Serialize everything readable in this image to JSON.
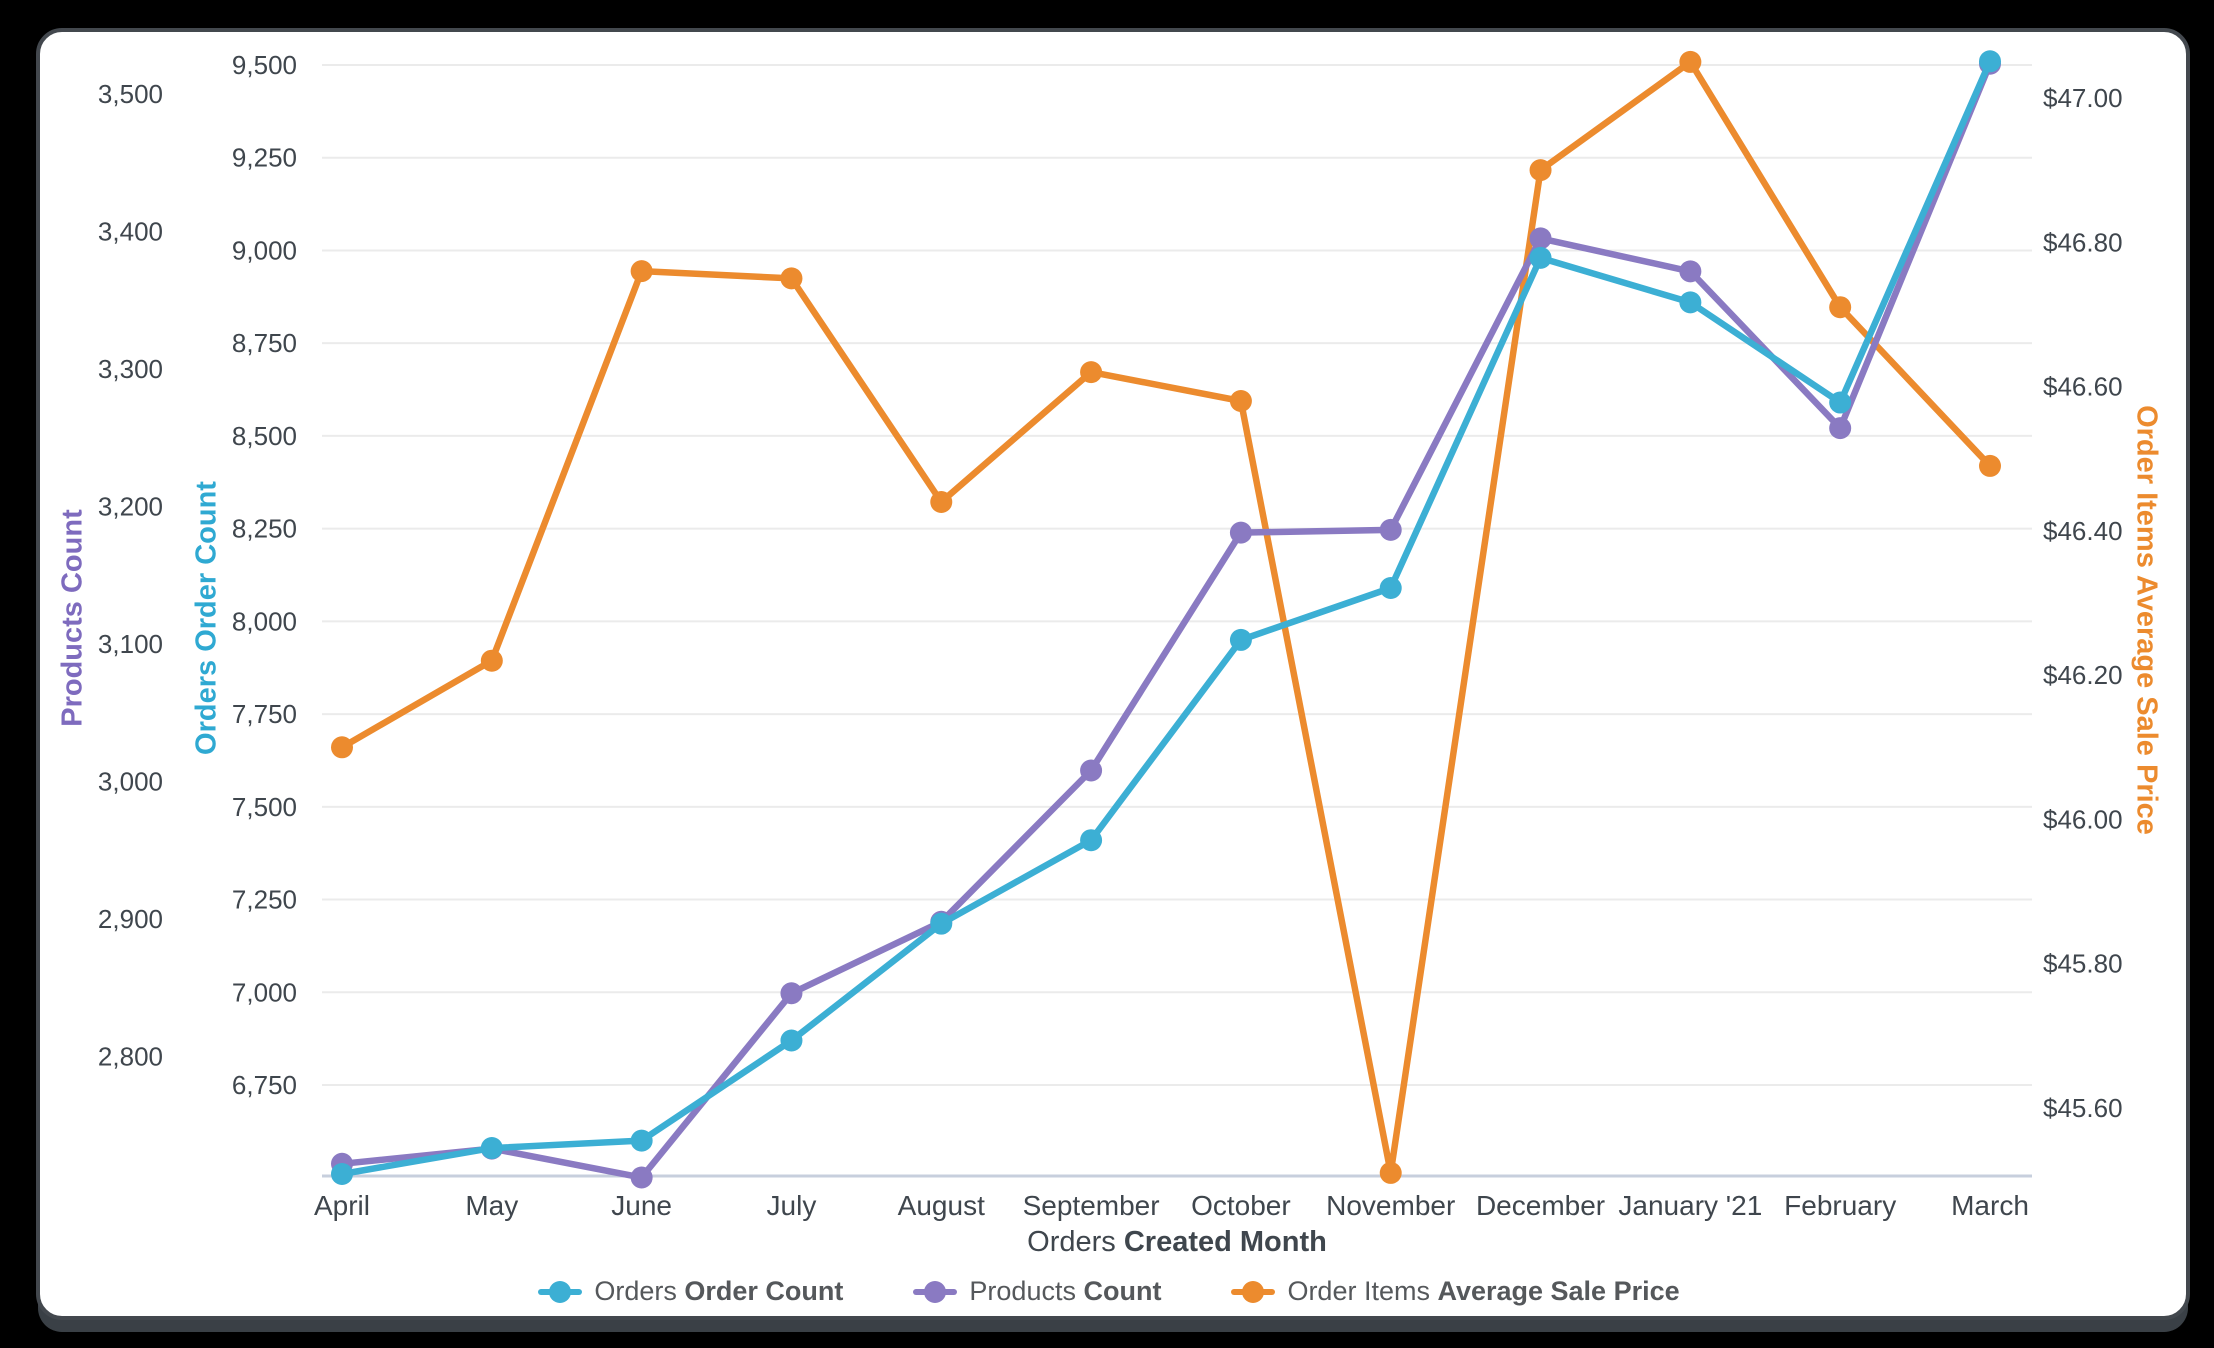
{
  "chart_data": {
    "type": "line",
    "categories": [
      "April",
      "May",
      "June",
      "July",
      "August",
      "September",
      "October",
      "November",
      "December",
      "January '21",
      "February",
      "March"
    ],
    "x_axis": {
      "title_normal": "Orders ",
      "title_bold": "Created Month"
    },
    "series": [
      {
        "name": "Orders Order Count",
        "legend_normal": "Orders ",
        "legend_bold": "Order Count",
        "axis": "orders",
        "color": "#3CAFD4",
        "values": [
          6510,
          6580,
          6600,
          6870,
          7185,
          7410,
          7950,
          8090,
          8980,
          8860,
          8590,
          9510
        ]
      },
      {
        "name": "Products Count",
        "legend_normal": "Products ",
        "legend_bold": "Count",
        "axis": "products",
        "color": "#8A7AC2",
        "values": [
          2722,
          2733,
          2712,
          2846,
          2898,
          3008,
          3181,
          3183,
          3395,
          3371,
          3257,
          3522
        ]
      },
      {
        "name": "Order Items Average Sale Price",
        "legend_normal": "Order Items ",
        "legend_bold": "Average Sale Price",
        "axis": "price",
        "color": "#EC8B2E",
        "values": [
          46.1,
          46.22,
          46.76,
          46.75,
          46.44,
          46.62,
          46.58,
          45.51,
          46.9,
          47.05,
          46.71,
          46.49
        ]
      }
    ],
    "axes": {
      "products": {
        "title": "Products Count",
        "color": "#7E6BBE",
        "tick_labels": [
          "3,500",
          "3,400",
          "3,300",
          "3,200",
          "3,100",
          "3,000",
          "2,900",
          "2,800"
        ],
        "tick_values": [
          3500,
          3400,
          3300,
          3200,
          3100,
          3000,
          2900,
          2800
        ]
      },
      "orders": {
        "title": "Orders Order Count",
        "color": "#2FA9D2",
        "tick_labels": [
          "9,500",
          "9,250",
          "9,000",
          "8,750",
          "8,500",
          "8,250",
          "8,000",
          "7,750",
          "7,500",
          "7,250",
          "7,000",
          "6,750"
        ],
        "tick_values": [
          9500,
          9250,
          9000,
          8750,
          8500,
          8250,
          8000,
          7750,
          7500,
          7250,
          7000,
          6750
        ]
      },
      "price": {
        "title": "Order Items Average Sale Price",
        "color": "#EC8B2E",
        "tick_labels": [
          "$47.00",
          "$46.80",
          "$46.60",
          "$46.40",
          "$46.20",
          "$46.00",
          "$45.80",
          "$45.60"
        ],
        "tick_values": [
          47.0,
          46.8,
          46.6,
          46.4,
          46.2,
          46.0,
          45.8,
          45.6
        ]
      }
    },
    "grid": "horizontal gridlines aligned to Orders Order Count axis",
    "legend_position": "bottom-center",
    "tick_text_color": "#3f464d",
    "gridline_color": "#ebebeb",
    "baseline_color": "#c7cfdd"
  }
}
